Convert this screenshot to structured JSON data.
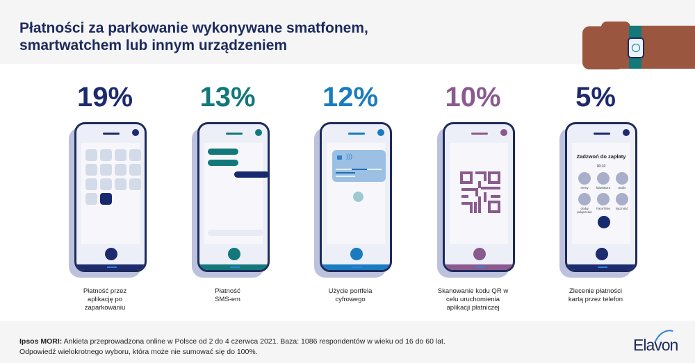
{
  "header": {
    "title_line1": "Płatności za parkowanie wykonywane smatfonem,",
    "title_line2": "smartwatchem lub innym urządzeniem"
  },
  "items": [
    {
      "percent": "19%",
      "color": "#1d2a6e",
      "label": [
        "Płatność przez",
        "aplikację po",
        "zaparkowaniu"
      ]
    },
    {
      "percent": "13%",
      "color": "#13787a",
      "label": [
        "Płatność",
        "SMS-em"
      ]
    },
    {
      "percent": "12%",
      "color": "#1a7bc0",
      "label": [
        "Użycie portfela",
        "cyfrowego"
      ]
    },
    {
      "percent": "10%",
      "color": "#8a5a8e",
      "label": [
        "Skanowanie kodu QR w",
        "celu uruchomienia",
        "aplikacji płatniczej"
      ]
    },
    {
      "percent": "5%",
      "color": "#1d2a6e",
      "label": [
        "Zlecenie płatności",
        "kartą przez telefon"
      ]
    }
  ],
  "call_screen": {
    "title": "Zadzwoń do zapłaty",
    "time": "00:10",
    "buttons": [
      "nemy",
      "klawiatura",
      "audio",
      "dodaj połączenie",
      "FaceTime",
      "łączność"
    ]
  },
  "footer": {
    "source": "Ipsos MORI:",
    "line1": " Ankieta przeprowadzona online w Polsce od 2 do 4 czerwca 2021. Baza: 1086 respondentów w wieku od 16 do 60 lat.",
    "line2": "Odpowiedź wielokrotnego wyboru, która może nie sumować się do 100%.",
    "logo": "Elavon"
  }
}
